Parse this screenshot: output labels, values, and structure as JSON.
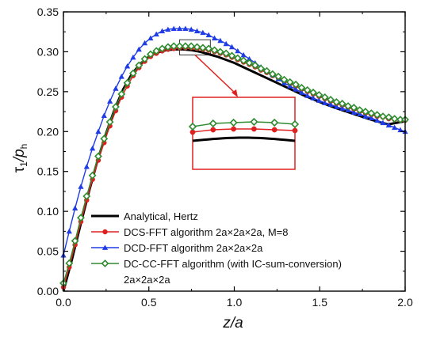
{
  "chart_data": {
    "type": "line",
    "xlabel": "z/a",
    "ylabel_main": "τ",
    "ylabel_sub1": "1",
    "ylabel_mid": "/p",
    "ylabel_sub2": "h",
    "xlim": [
      0,
      2
    ],
    "ylim": [
      0,
      0.35
    ],
    "xticks": [
      0,
      0.5,
      1,
      1.5,
      2
    ],
    "yticks": [
      0,
      0.05,
      0.1,
      0.15,
      0.2,
      0.25,
      0.3,
      0.35
    ],
    "xtick_labels": [
      "0.0",
      "0.5",
      "1.0",
      "1.5",
      "2.0"
    ],
    "ytick_labels": [
      "0.00",
      "0.05",
      "0.10",
      "0.15",
      "0.20",
      "0.25",
      "0.30",
      "0.35"
    ],
    "grid": false,
    "legend_position": "bottom-left",
    "series": [
      {
        "name": "Analytical, Hertz",
        "color": "#000000",
        "marker": "none",
        "x": [
          0.0,
          0.025,
          0.05,
          0.1,
          0.15,
          0.2,
          0.25,
          0.3,
          0.35,
          0.4,
          0.45,
          0.5,
          0.55,
          0.6,
          0.65,
          0.7,
          0.75,
          0.8,
          0.85,
          0.9,
          1.0,
          1.1,
          1.2,
          1.3,
          1.4,
          1.5,
          1.6,
          1.7,
          1.8,
          1.9,
          2.0
        ],
        "y": [
          0.0,
          0.02,
          0.04,
          0.083,
          0.125,
          0.164,
          0.198,
          0.228,
          0.253,
          0.272,
          0.285,
          0.294,
          0.299,
          0.302,
          0.303,
          0.303,
          0.302,
          0.3,
          0.297,
          0.294,
          0.286,
          0.276,
          0.266,
          0.256,
          0.246,
          0.237,
          0.229,
          0.222,
          0.215,
          0.209,
          0.213
        ]
      },
      {
        "name": "DCS-FFT algorithm 2a×2a×2a, M=8",
        "color": "#e02020",
        "marker": "circle",
        "x": [
          0.0,
          0.034,
          0.068,
          0.102,
          0.136,
          0.17,
          0.204,
          0.238,
          0.272,
          0.306,
          0.34,
          0.374,
          0.408,
          0.442,
          0.476,
          0.51,
          0.544,
          0.578,
          0.612,
          0.646,
          0.68,
          0.714,
          0.748,
          0.782,
          0.816,
          0.85,
          0.884,
          0.918,
          0.952,
          0.986,
          1.02,
          1.054,
          1.088,
          1.122,
          1.156,
          1.19,
          1.224,
          1.258,
          1.292,
          1.326,
          1.36,
          1.394,
          1.428,
          1.462,
          1.496,
          1.53,
          1.564,
          1.598,
          1.632,
          1.666,
          1.7,
          1.734,
          1.768,
          1.802,
          1.836,
          1.87,
          1.904,
          1.938,
          1.972,
          2.0
        ],
        "y": [
          0.005,
          0.03,
          0.058,
          0.087,
          0.114,
          0.14,
          0.164,
          0.186,
          0.207,
          0.226,
          0.243,
          0.257,
          0.27,
          0.28,
          0.288,
          0.294,
          0.298,
          0.301,
          0.303,
          0.304,
          0.305,
          0.305,
          0.305,
          0.304,
          0.303,
          0.302,
          0.3,
          0.298,
          0.296,
          0.293,
          0.29,
          0.287,
          0.284,
          0.281,
          0.277,
          0.274,
          0.27,
          0.267,
          0.263,
          0.26,
          0.257,
          0.253,
          0.25,
          0.247,
          0.244,
          0.241,
          0.238,
          0.235,
          0.233,
          0.23,
          0.228,
          0.225,
          0.223,
          0.221,
          0.219,
          0.218,
          0.216,
          0.215,
          0.214,
          0.214
        ]
      },
      {
        "name": "DCD-FFT algorithm 2a×2a×2a",
        "color": "#1f3ce6",
        "marker": "triangle",
        "x": [
          0.0,
          0.034,
          0.068,
          0.102,
          0.136,
          0.17,
          0.204,
          0.238,
          0.272,
          0.306,
          0.34,
          0.374,
          0.408,
          0.442,
          0.476,
          0.51,
          0.544,
          0.578,
          0.612,
          0.646,
          0.68,
          0.714,
          0.748,
          0.782,
          0.816,
          0.85,
          0.884,
          0.918,
          0.952,
          0.986,
          1.02,
          1.054,
          1.088,
          1.122,
          1.156,
          1.19,
          1.224,
          1.258,
          1.292,
          1.326,
          1.36,
          1.394,
          1.428,
          1.462,
          1.496,
          1.53,
          1.564,
          1.598,
          1.632,
          1.666,
          1.7,
          1.734,
          1.768,
          1.802,
          1.836,
          1.87,
          1.904,
          1.938,
          1.972,
          2.0
        ],
        "y": [
          0.045,
          0.075,
          0.104,
          0.131,
          0.156,
          0.179,
          0.2,
          0.22,
          0.238,
          0.254,
          0.269,
          0.282,
          0.293,
          0.303,
          0.311,
          0.317,
          0.322,
          0.326,
          0.328,
          0.329,
          0.329,
          0.329,
          0.328,
          0.326,
          0.324,
          0.321,
          0.317,
          0.314,
          0.31,
          0.306,
          0.301,
          0.296,
          0.291,
          0.286,
          0.281,
          0.276,
          0.271,
          0.266,
          0.261,
          0.257,
          0.253,
          0.249,
          0.245,
          0.242,
          0.239,
          0.236,
          0.234,
          0.231,
          0.229,
          0.227,
          0.224,
          0.222,
          0.219,
          0.217,
          0.214,
          0.211,
          0.208,
          0.205,
          0.202,
          0.2
        ]
      },
      {
        "name": "DC-CC-FFT algorithm (with IC-sum-conversion)",
        "name_line2": "2a×2a×2a",
        "color": "#2e8b2e",
        "marker": "diamond",
        "x": [
          0.0,
          0.034,
          0.068,
          0.102,
          0.136,
          0.17,
          0.204,
          0.238,
          0.272,
          0.306,
          0.34,
          0.374,
          0.408,
          0.442,
          0.476,
          0.51,
          0.544,
          0.578,
          0.612,
          0.646,
          0.68,
          0.714,
          0.748,
          0.782,
          0.816,
          0.85,
          0.884,
          0.918,
          0.952,
          0.986,
          1.02,
          1.054,
          1.088,
          1.122,
          1.156,
          1.19,
          1.224,
          1.258,
          1.292,
          1.326,
          1.36,
          1.394,
          1.428,
          1.462,
          1.496,
          1.53,
          1.564,
          1.598,
          1.632,
          1.666,
          1.7,
          1.734,
          1.768,
          1.802,
          1.836,
          1.87,
          1.904,
          1.938,
          1.972,
          2.0
        ],
        "y": [
          0.01,
          0.035,
          0.063,
          0.092,
          0.119,
          0.145,
          0.169,
          0.191,
          0.212,
          0.231,
          0.247,
          0.261,
          0.273,
          0.283,
          0.291,
          0.297,
          0.301,
          0.304,
          0.306,
          0.307,
          0.307,
          0.307,
          0.307,
          0.306,
          0.305,
          0.304,
          0.302,
          0.3,
          0.298,
          0.295,
          0.292,
          0.289,
          0.286,
          0.283,
          0.279,
          0.276,
          0.272,
          0.269,
          0.265,
          0.262,
          0.259,
          0.255,
          0.252,
          0.249,
          0.246,
          0.243,
          0.24,
          0.237,
          0.235,
          0.232,
          0.23,
          0.227,
          0.225,
          0.223,
          0.221,
          0.219,
          0.218,
          0.216,
          0.215,
          0.215
        ]
      }
    ],
    "inset": {
      "zoom_xrange": [
        0.68,
        0.86
      ],
      "zoom_yrange": [
        0.296,
        0.315
      ],
      "border_color": "#e02020",
      "marker_x": [
        0.68,
        0.714,
        0.748,
        0.782,
        0.816,
        0.85
      ]
    }
  }
}
